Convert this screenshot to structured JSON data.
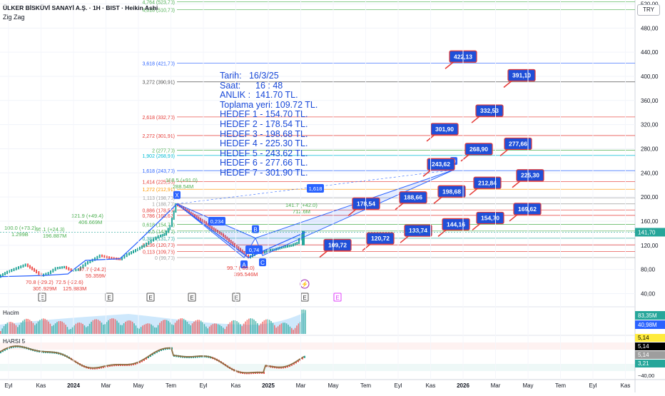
{
  "header": {
    "title": "ÜLKER BİSKÜVİ SANAYİ A.Ş. · 1H · BIST · Heikin Ashi",
    "indicator": "Zig Zag",
    "currency": "TRY"
  },
  "note_lines": [
    "Tarih:   16/3/25",
    "Saat:      16 : 48",
    "ANLIK :  141.70 TL.",
    "Toplama yeri: 109.72 TL.",
    "HEDEF 1 - 154.70 TL.",
    "HEDEF 2 - 178.54 TL.",
    "HEDEF 3 - 198.68 TL.",
    "HEDEF 4 - 225.30 TL.",
    "HEDEF 5 - 243.62 TL.",
    "HEDEF 6 - 277.66 TL.",
    "HEDEF 7 - 301.90 TL."
  ],
  "chart_data": {
    "type": "line",
    "title": "ÜLKER BİSKÜVİ SANAYİ A.Ş. · 1H · BIST · Heikin Ashi",
    "y_ticks": [
      40,
      80,
      120,
      160,
      200,
      240,
      280,
      320,
      360,
      400,
      440,
      480,
      520
    ],
    "y_tick_labels": [
      "40,00",
      "80,00",
      "120,00",
      "160,00",
      "200,00",
      "240,00",
      "280,00",
      "320,00",
      "360,00",
      "400,00",
      "440,00",
      "480,00",
      "520,00"
    ],
    "ylim": [
      20,
      540
    ],
    "x_tick_labels": [
      "Eyl",
      "Kas",
      "2024",
      "Mar",
      "May",
      "Tem",
      "Eyl",
      "Kas",
      "2025",
      "Mar",
      "May",
      "Tem",
      "Eyl",
      "Kas",
      "2026",
      "Mar",
      "May",
      "Tem",
      "Eyl",
      "Kas"
    ],
    "last_price": "141,70",
    "fib_levels": [
      {
        "label": "4,764 (523,70)",
        "value": 523.7,
        "color": "#4caf50"
      },
      {
        "label": "4,618 (510,70)",
        "value": 510.7,
        "color": "#4caf50"
      },
      {
        "label": "3,618 (421,70)",
        "value": 421.7,
        "color": "#2962ff"
      },
      {
        "label": "3,272 (390,91)",
        "value": 390.91,
        "color": "#555555"
      },
      {
        "label": "2,618 (332,70)",
        "value": 332.7,
        "color": "#e53935"
      },
      {
        "label": "2,272 (301,91)",
        "value": 301.91,
        "color": "#e53935"
      },
      {
        "label": "2 (277,70)",
        "value": 277.7,
        "color": "#4caf50"
      },
      {
        "label": "1,902 (268,98)",
        "value": 268.98,
        "color": "#00bcd4"
      },
      {
        "label": "1,618 (243,70)",
        "value": 243.7,
        "color": "#2962ff"
      },
      {
        "label": "1,414 (225,55)",
        "value": 225.55,
        "color": "#e53935"
      },
      {
        "label": "1,272 (212,91)",
        "value": 212.91,
        "color": "#ff9800"
      },
      {
        "label": "1,113 (198,70)",
        "value": 198.7,
        "color": "#9e9e9e"
      },
      {
        "label": "1 (188,70)",
        "value": 188.7,
        "color": "#9e9e9e"
      },
      {
        "label": "0,886 (178,55)",
        "value": 178.55,
        "color": "#e53935"
      },
      {
        "label": "0,786 (169,62)",
        "value": 169.62,
        "color": "#e53935"
      },
      {
        "label": "0,618 (154,70)",
        "value": 154.7,
        "color": "#4caf50"
      },
      {
        "label": "0,5 (143,70)",
        "value": 143.7,
        "color": "#4caf50"
      },
      {
        "label": "0,382 (131,70)",
        "value": 131.7,
        "color": "#26a69a"
      },
      {
        "label": "0,236 (120,70)",
        "value": 120.7,
        "color": "#e53935"
      },
      {
        "label": "0,113 (109,76)",
        "value": 109.76,
        "color": "#e53935"
      },
      {
        "label": "0 (99,70)",
        "value": 99.7,
        "color": "#9e9e9e"
      }
    ],
    "targets": [
      {
        "label": "109,72",
        "value": 109.72
      },
      {
        "label": "120,72",
        "value": 120.72
      },
      {
        "label": "133,74",
        "value": 133.74
      },
      {
        "label": "144,16",
        "value": 144.16
      },
      {
        "label": "154,70",
        "value": 154.7
      },
      {
        "label": "169,62",
        "value": 169.62
      },
      {
        "label": "178,54",
        "value": 178.54
      },
      {
        "label": "188,66",
        "value": 188.66
      },
      {
        "label": "198,68",
        "value": 198.68
      },
      {
        "label": "212,84",
        "value": 212.84
      },
      {
        "label": "225,30",
        "value": 225.3
      },
      {
        "label": "243,62",
        "value": 243.62
      },
      {
        "label": "268,90",
        "value": 268.9
      },
      {
        "label": "277,66",
        "value": 277.66
      },
      {
        "label": "301,90",
        "value": 301.9
      },
      {
        "label": "332,53",
        "value": 332.53
      },
      {
        "label": "391,10",
        "value": 391.1
      },
      {
        "label": "422,13",
        "value": 422.13
      }
    ],
    "zigzag_labels": [
      {
        "text": "100.0 (+73.2)",
        "sub": "1.299B",
        "color": "#4caf50"
      },
      {
        "text": "95.1 (+24.3)",
        "sub": "196.887M",
        "color": "#4caf50"
      },
      {
        "text": "121.9 (+49.4)",
        "sub": "406.669M",
        "color": "#4caf50"
      },
      {
        "text": "188.5 (+91.0)",
        "sub": "288.54M",
        "color": "#4caf50"
      },
      {
        "text": "141.7 (+42.0)",
        "sub": "712.6M",
        "color": "#4caf50"
      },
      {
        "text": "70.8 (-29.2)",
        "sub": "305.929M",
        "color": "#e53935"
      },
      {
        "text": "72.5 (-22.6)",
        "sub": "125.883M",
        "color": "#e53935"
      },
      {
        "text": "97.7 (-24.2)",
        "sub": "55.359M",
        "color": "#e53935"
      },
      {
        "text": "99.7 (-89.0)",
        "sub": "395.546M",
        "color": "#e53935"
      }
    ],
    "pattern_points": [
      "X",
      "A",
      "B",
      "C",
      "D"
    ],
    "pattern_ratios": [
      "1,618",
      "0,234",
      "0,74"
    ],
    "volume": {
      "label": "Hacim",
      "value1": "83,35M",
      "value2": "40,98M"
    },
    "rsi": {
      "label": "HARSI 5",
      "values": [
        "5,14",
        "5,14",
        "5,14",
        "3,21"
      ],
      "bottom": "−40,00"
    },
    "events": [
      "E",
      "E",
      "E",
      "E",
      "E",
      "E",
      "E"
    ]
  }
}
